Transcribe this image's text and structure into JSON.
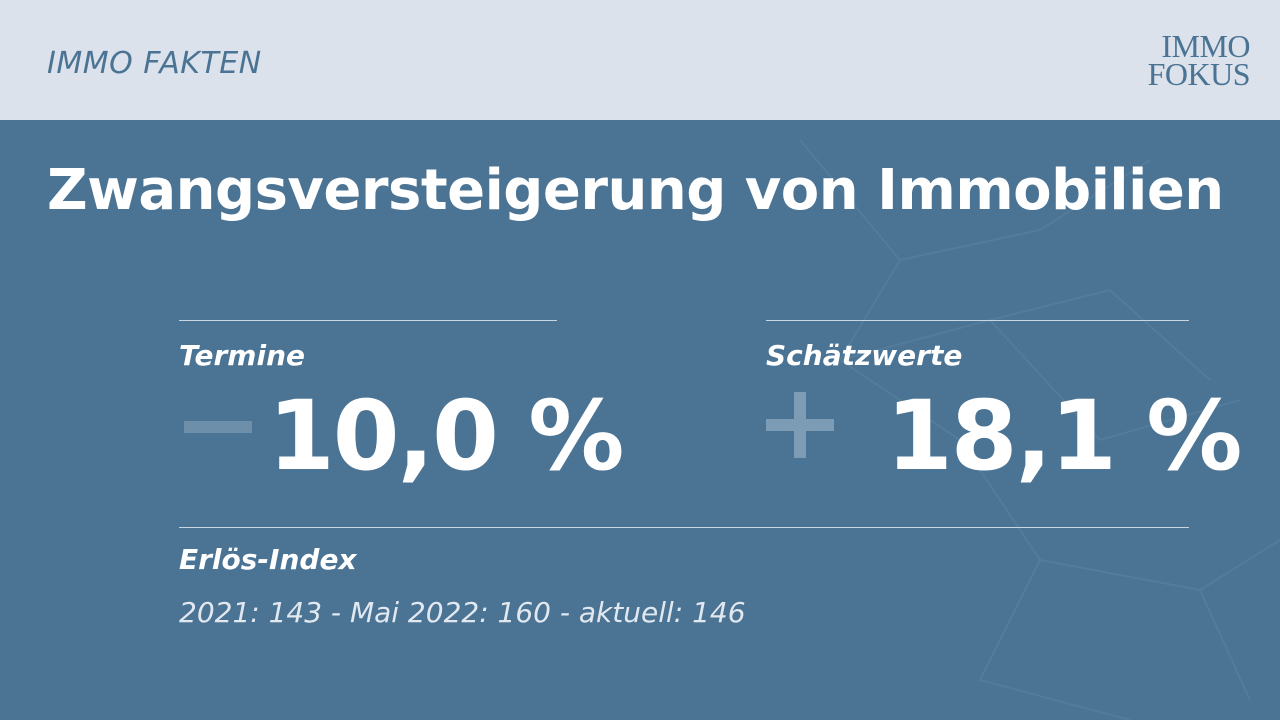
{
  "header": {
    "section_label": "IMMO FAKTEN",
    "logo_line1": "IMMO",
    "logo_line2": "FOKUS"
  },
  "title": "Zwangsversteigerung von Immobilien",
  "stats": [
    {
      "label": "Termine",
      "sign": "minus",
      "value": "10,0 %"
    },
    {
      "label": "Schätzwerte",
      "sign": "plus",
      "value": "18,1 %"
    }
  ],
  "index": {
    "label": "Erlös-Index",
    "text": "2021: 143 - Mai 2022: 160 - aktuell: 146"
  },
  "colors": {
    "background": "#4a7394",
    "header_background": "#dbe2ec",
    "accent": "#4a7394",
    "text": "#ffffff"
  }
}
